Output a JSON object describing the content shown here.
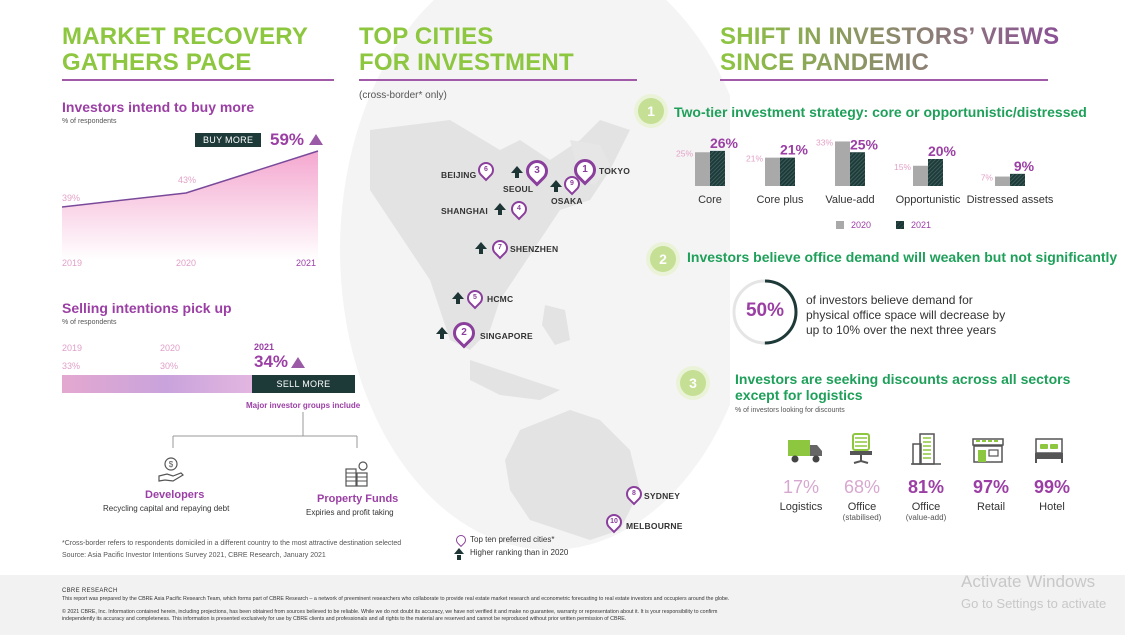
{
  "left": {
    "title_line1": "MARKET RECOVERY",
    "title_line2": "GATHERS PACE",
    "buy": {
      "title": "Investors intend to buy more",
      "subtitle": "% of respondents",
      "badge": "BUY MORE",
      "highlight": "59%",
      "points": [
        {
          "year": "2019",
          "value": "39%"
        },
        {
          "year": "2020",
          "value": "43%"
        },
        {
          "year": "2021",
          "value": "59%"
        }
      ]
    },
    "sell": {
      "title": "Selling intentions pick up",
      "subtitle": "% of respondents",
      "years": [
        "2019",
        "2020",
        "2021"
      ],
      "values": [
        "33%",
        "30%",
        "34%"
      ],
      "badge": "SELL MORE",
      "caption": "Major investor groups include"
    },
    "groups": [
      {
        "name": "Developers",
        "desc": "Recycling capital and repaying debt",
        "icon": "money-hand-icon"
      },
      {
        "name": "Property Funds",
        "desc": "Expiries and profit taking",
        "icon": "coins-stack-icon"
      }
    ],
    "footnote": "*Cross-border refers to respondents domiciled in a different country to the most attractive destination selected",
    "source": "Source: Asia Pacific Investor Intentions Survey 2021, CBRE Research, January 2021"
  },
  "middle": {
    "title_line1": "TOP CITIES",
    "title_line2": "FOR INVESTMENT",
    "subtitle": "(cross-border* only)",
    "cities": [
      {
        "rank": "1",
        "name": "TOKYO",
        "up": false
      },
      {
        "rank": "2",
        "name": "SINGAPORE",
        "up": true
      },
      {
        "rank": "3",
        "name": "SEOUL",
        "up": true
      },
      {
        "rank": "4",
        "name": "SHANGHAI",
        "up": true
      },
      {
        "rank": "5",
        "name": "HCMC",
        "up": true
      },
      {
        "rank": "6",
        "name": "BEIJING",
        "up": false
      },
      {
        "rank": "7",
        "name": "SHENZHEN",
        "up": true
      },
      {
        "rank": "8",
        "name": "SYDNEY",
        "up": false
      },
      {
        "rank": "9",
        "name": "OSAKA",
        "up": true
      },
      {
        "rank": "10",
        "name": "MELBOURNE",
        "up": false
      }
    ],
    "legend_pin": "Top ten preferred cities*",
    "legend_arrow": "Higher ranking than in 2020"
  },
  "right": {
    "title_line1": "SHIFT IN INVESTORS’ VIEWS",
    "title_line2": "SINCE PANDEMIC",
    "s1": {
      "num": "1",
      "title": "Two-tier investment strategy: core or opportunistic/distressed",
      "legend_2020": "2020",
      "legend_2021": "2021"
    },
    "chart_data": {
      "type": "bar",
      "categories": [
        "Core",
        "Core plus",
        "Value-add",
        "Opportunistic",
        "Distressed assets"
      ],
      "series": [
        {
          "name": "2020",
          "values": [
            25,
            21,
            33,
            15,
            7
          ]
        },
        {
          "name": "2021",
          "values": [
            26,
            21,
            25,
            20,
            9
          ]
        }
      ]
    },
    "s2": {
      "num": "2",
      "title": "Investors believe office demand will weaken but not significantly",
      "pct": "50%",
      "pct_value": 50,
      "line1": "of investors believe demand for",
      "line2": "physical office space will decrease by",
      "line3": "up to 10% over the next three years"
    },
    "s3": {
      "num": "3",
      "title_line1": "Investors are seeking discounts across all sectors",
      "title_line2": "except for logistics",
      "subtitle": "% of investors looking for discounts",
      "sectors": [
        {
          "pct": "17%",
          "name": "Logistics",
          "sub": "",
          "icon": "truck-icon",
          "hot": false
        },
        {
          "pct": "68%",
          "name": "Office",
          "sub": "(stabilised)",
          "icon": "office-chair-icon",
          "hot": false
        },
        {
          "pct": "81%",
          "name": "Office",
          "sub": "(value-add)",
          "icon": "office-building-icon",
          "hot": true
        },
        {
          "pct": "97%",
          "name": "Retail",
          "sub": "",
          "icon": "storefront-icon",
          "hot": true
        },
        {
          "pct": "99%",
          "name": "Hotel",
          "sub": "",
          "icon": "bed-icon",
          "hot": true
        }
      ]
    }
  },
  "footer": {
    "brand": "CBRE RESEARCH",
    "line1": "This report was prepared by the CBRE Asia Pacific Research Team, which forms part of CBRE Research – a network of preeminent researchers who collaborate to provide real estate market research and econometric forecasting to real estate investors and occupiers around the globe.",
    "line2": "© 2021 CBRE, Inc. Information contained herein, including projections, has been obtained from sources believed to be reliable. While we do not doubt its accuracy, we have not verified it and make no guarantee, warranty or representation about it. It is your responsibility to confirm",
    "line3": "independently its accuracy and completeness. This information is presented exclusively for use by CBRE clients and professionals and all rights to the material are reserved and cannot be reproduced without prior written permission of CBRE."
  },
  "watermark": {
    "title": "Activate Windows",
    "sub": "Go to Settings to activate"
  }
}
